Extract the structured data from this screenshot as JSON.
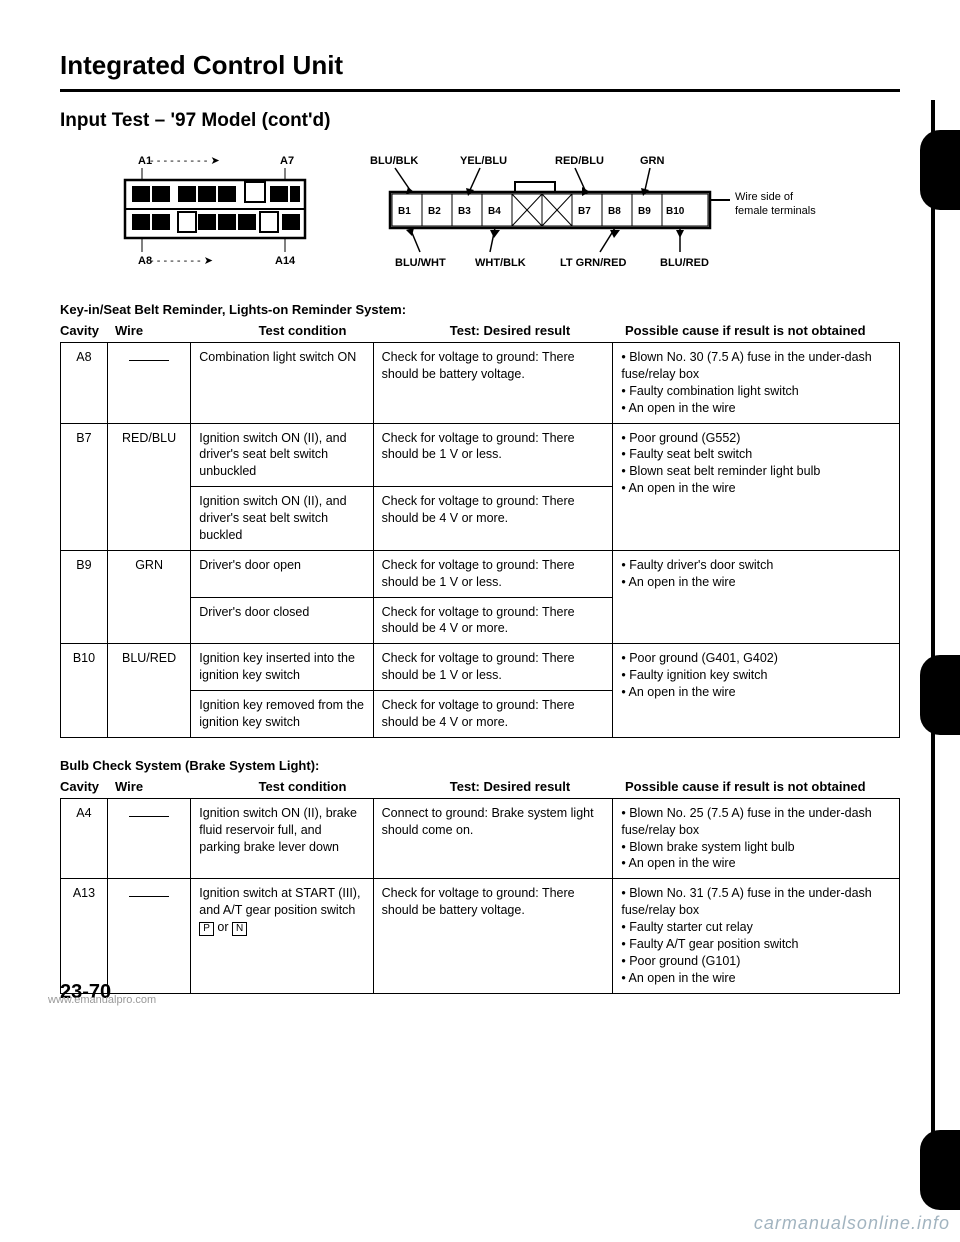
{
  "title": "Integrated Control Unit",
  "subtitle": "Input Test – '97 Model (cont'd)",
  "connector_a": {
    "label_top_left": "A1",
    "label_top_right": "A7",
    "label_bottom_left": "A8",
    "label_bottom_right": "A14"
  },
  "connector_b": {
    "top_labels": [
      "BLU/BLK",
      "YEL/BLU",
      "RED/BLU",
      "GRN"
    ],
    "pins": [
      "B1",
      "B2",
      "B3",
      "B4",
      "",
      "",
      "B7",
      "B8",
      "B9",
      "B10"
    ],
    "bottom_labels": [
      "BLU/WHT",
      "WHT/BLK",
      "LT GRN/RED",
      "BLU/RED"
    ],
    "side_note": "Wire side of female terminals"
  },
  "system1_label": "Key-in/Seat Belt Reminder, Lights-on Reminder System:",
  "headers": {
    "cavity": "Cavity",
    "wire": "Wire",
    "cond": "Test condition",
    "result": "Test: Desired result",
    "cause": "Possible cause if result is not obtained"
  },
  "table1": [
    {
      "cavity": "A8",
      "wire": "—",
      "rows": [
        {
          "cond": "Combination light switch ON",
          "result": "Check for voltage to ground: There should be battery voltage."
        }
      ],
      "cause": [
        "Blown No. 30 (7.5 A) fuse in the under-dash fuse/relay box",
        "Faulty combination light switch",
        "An open in the wire"
      ]
    },
    {
      "cavity": "B7",
      "wire": "RED/BLU",
      "rows": [
        {
          "cond": "Ignition switch ON (II), and driver's seat belt switch unbuckled",
          "result": "Check for voltage to ground: There should be 1 V or less."
        },
        {
          "cond": "Ignition switch ON (II), and driver's seat belt switch buckled",
          "result": "Check for voltage to ground: There should be 4 V or more."
        }
      ],
      "cause": [
        "Poor ground (G552)",
        "Faulty seat belt switch",
        "Blown seat belt reminder light bulb",
        "An open in the wire"
      ]
    },
    {
      "cavity": "B9",
      "wire": "GRN",
      "rows": [
        {
          "cond": "Driver's door open",
          "result": "Check for voltage to ground: There should be 1 V or less."
        },
        {
          "cond": "Driver's door closed",
          "result": "Check for voltage to ground: There should be 4 V or more."
        }
      ],
      "cause": [
        "Faulty driver's door switch",
        "An open in the wire"
      ]
    },
    {
      "cavity": "B10",
      "wire": "BLU/RED",
      "rows": [
        {
          "cond": "Ignition key inserted into the ignition key switch",
          "result": "Check for voltage to ground: There should be 1 V or less."
        },
        {
          "cond": "Ignition key removed from the ignition key switch",
          "result": "Check for voltage to ground: There should be 4 V or more."
        }
      ],
      "cause": [
        "Poor ground (G401, G402)",
        "Faulty ignition key switch",
        "An open in the wire"
      ]
    }
  ],
  "system2_label": "Bulb Check System (Brake System Light):",
  "table2": [
    {
      "cavity": "A4",
      "wire": "—",
      "rows": [
        {
          "cond": "Ignition switch ON (II), brake fluid reservoir full, and parking brake lever down",
          "result": "Connect to ground: Brake system light should come on."
        }
      ],
      "cause": [
        "Blown No. 25 (7.5 A) fuse in the under-dash fuse/relay box",
        "Blown brake system light bulb",
        "An open in the wire"
      ]
    },
    {
      "cavity": "A13",
      "wire": "—",
      "rows": [
        {
          "cond": "Ignition switch at START (III), and A/T gear position switch [P] or [N]",
          "result": "Check for voltage to ground: There should be battery voltage."
        }
      ],
      "cause": [
        "Blown No. 31 (7.5 A) fuse in the under-dash fuse/relay box",
        "Faulty starter cut relay",
        "Faulty A/T gear position switch",
        "Poor ground (G101)",
        "An open in the wire"
      ]
    }
  ],
  "page_number": "23-70",
  "watermark1": "www.emanualpro.com",
  "watermark2": "carmanualsonline.info"
}
